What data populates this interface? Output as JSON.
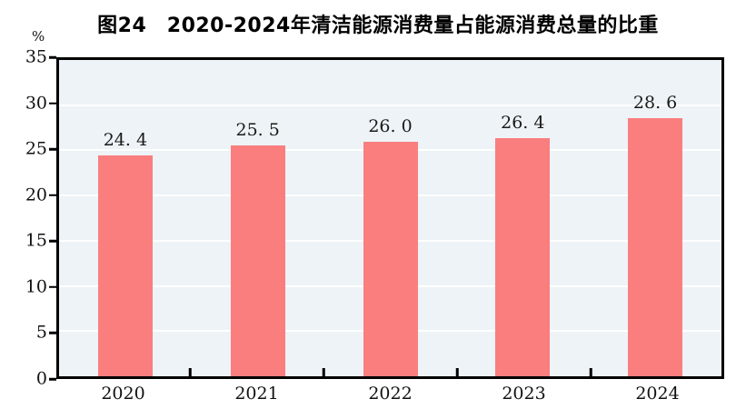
{
  "page": {
    "background": "#ffffff"
  },
  "header": {
    "title": "图24　2020-2024年清洁能源消费量占能源消费总量的比重"
  },
  "y_axis": {
    "unit_label": "%",
    "tick_labels": [
      "0",
      "5",
      "10",
      "15",
      "20",
      "25",
      "30",
      "35"
    ]
  },
  "x_axis": {
    "tick_labels": [
      "2020",
      "2021",
      "2022",
      "2023",
      "2024"
    ]
  },
  "chart_data": {
    "type": "bar",
    "title": "图24　2020-2024年清洁能源消费量占能源消费总量的比重",
    "categories": [
      "2020",
      "2021",
      "2022",
      "2023",
      "2024"
    ],
    "values": [
      24.4,
      25.5,
      26.0,
      26.4,
      28.6
    ],
    "value_labels": [
      "24. 4",
      "25. 5",
      "26. 0",
      "26. 4",
      "28. 6"
    ],
    "xlabel": "",
    "ylabel": "%",
    "ylim": [
      0,
      35
    ],
    "ytick_step": 5,
    "grid": true,
    "legend_position": "none",
    "colors": {
      "bar": "#fa7e7e",
      "plot_background": "#edf3f6",
      "gridline": "#ffffff",
      "axis_frame": "#000000",
      "label_text": "#1a1a1a"
    }
  }
}
